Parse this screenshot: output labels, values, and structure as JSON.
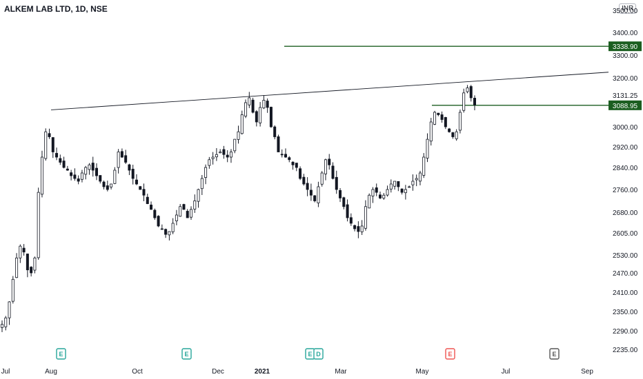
{
  "header": {
    "title": "ALKEM LAB LTD, 1D, NSE",
    "currency": "INR"
  },
  "colors": {
    "bull": "#131722",
    "bear": "#131722",
    "level": "#1b5e20",
    "trend": "#131722",
    "earnings_green": "#26a69a",
    "earnings_red": "#ef5350",
    "earnings_gray": "#555555"
  },
  "chart_data": {
    "type": "candlestick",
    "title": "ALKEM LAB LTD, 1D, NSE",
    "ylim": [
      2200,
      3500
    ],
    "y_ticks": [
      "3500.00",
      "3400.00",
      "3300.00",
      "3200.00",
      "3131.25",
      "3000.00",
      "2920.00",
      "2840.00",
      "2760.00",
      "2680.00",
      "2605.00",
      "2530.00",
      "2470.00",
      "2410.00",
      "2350.00",
      "2290.00",
      "2235.00"
    ],
    "x_ticks": [
      "Jul",
      "Aug",
      "Oct",
      "Dec",
      "2021",
      "Mar",
      "May",
      "Jul",
      "Sep"
    ],
    "price_levels": [
      {
        "label": "3338.90",
        "value": 3338.9
      },
      {
        "label": "3088.95",
        "value": 3088.95
      }
    ],
    "trendline": {
      "start": [
        "2020-07-31",
        3070
      ],
      "end": [
        "2021-06-30",
        3225
      ]
    },
    "earnings_markers": [
      {
        "label": "E",
        "date": "2020-08-05",
        "color": "green"
      },
      {
        "label": "E",
        "date": "2020-11-10",
        "color": "green"
      },
      {
        "label": "E",
        "date": "2021-02-08",
        "color": "green"
      },
      {
        "label": "D",
        "date": "2021-02-10",
        "color": "green"
      },
      {
        "label": "E",
        "date": "2021-05-27",
        "color": "red"
      },
      {
        "label": "E",
        "date": "2021-08-12",
        "color": "gray"
      }
    ],
    "close_series": [
      2310,
      2330,
      2380,
      2450,
      2520,
      2560,
      2540,
      2480,
      2470,
      2520,
      2750,
      2880,
      2980,
      2960,
      2900,
      2880,
      2860,
      2840,
      2830,
      2810,
      2800,
      2790,
      2820,
      2840,
      2850,
      2830,
      2810,
      2790,
      2770,
      2760,
      2780,
      2830,
      2900,
      2880,
      2860,
      2830,
      2800,
      2780,
      2760,
      2740,
      2710,
      2690,
      2660,
      2630,
      2620,
      2600,
      2610,
      2640,
      2670,
      2700,
      2690,
      2660,
      2690,
      2720,
      2760,
      2800,
      2840,
      2870,
      2880,
      2890,
      2900,
      2890,
      2880,
      2900,
      2950,
      2980,
      3050,
      3100,
      3120,
      3060,
      3020,
      3080,
      3110,
      3080,
      3000,
      2960,
      2900,
      2890,
      2880,
      2870,
      2850,
      2840,
      2800,
      2780,
      2760,
      2740,
      2720,
      2770,
      2820,
      2870,
      2850,
      2800,
      2760,
      2730,
      2700,
      2660,
      2640,
      2620,
      2610,
      2630,
      2700,
      2740,
      2760,
      2750,
      2730,
      2740,
      2760,
      2780,
      2790,
      2770,
      2750,
      2760,
      2770,
      2790,
      2800,
      2820,
      2880,
      2950,
      3020,
      3060,
      3050,
      3030,
      3000,
      2980,
      2960,
      2980,
      3060,
      3140,
      3160,
      3120,
      3090
    ],
    "ohlc_notes": "approximate daily candles Jul 2020 – Jun 2021, read from the plotted price range"
  }
}
